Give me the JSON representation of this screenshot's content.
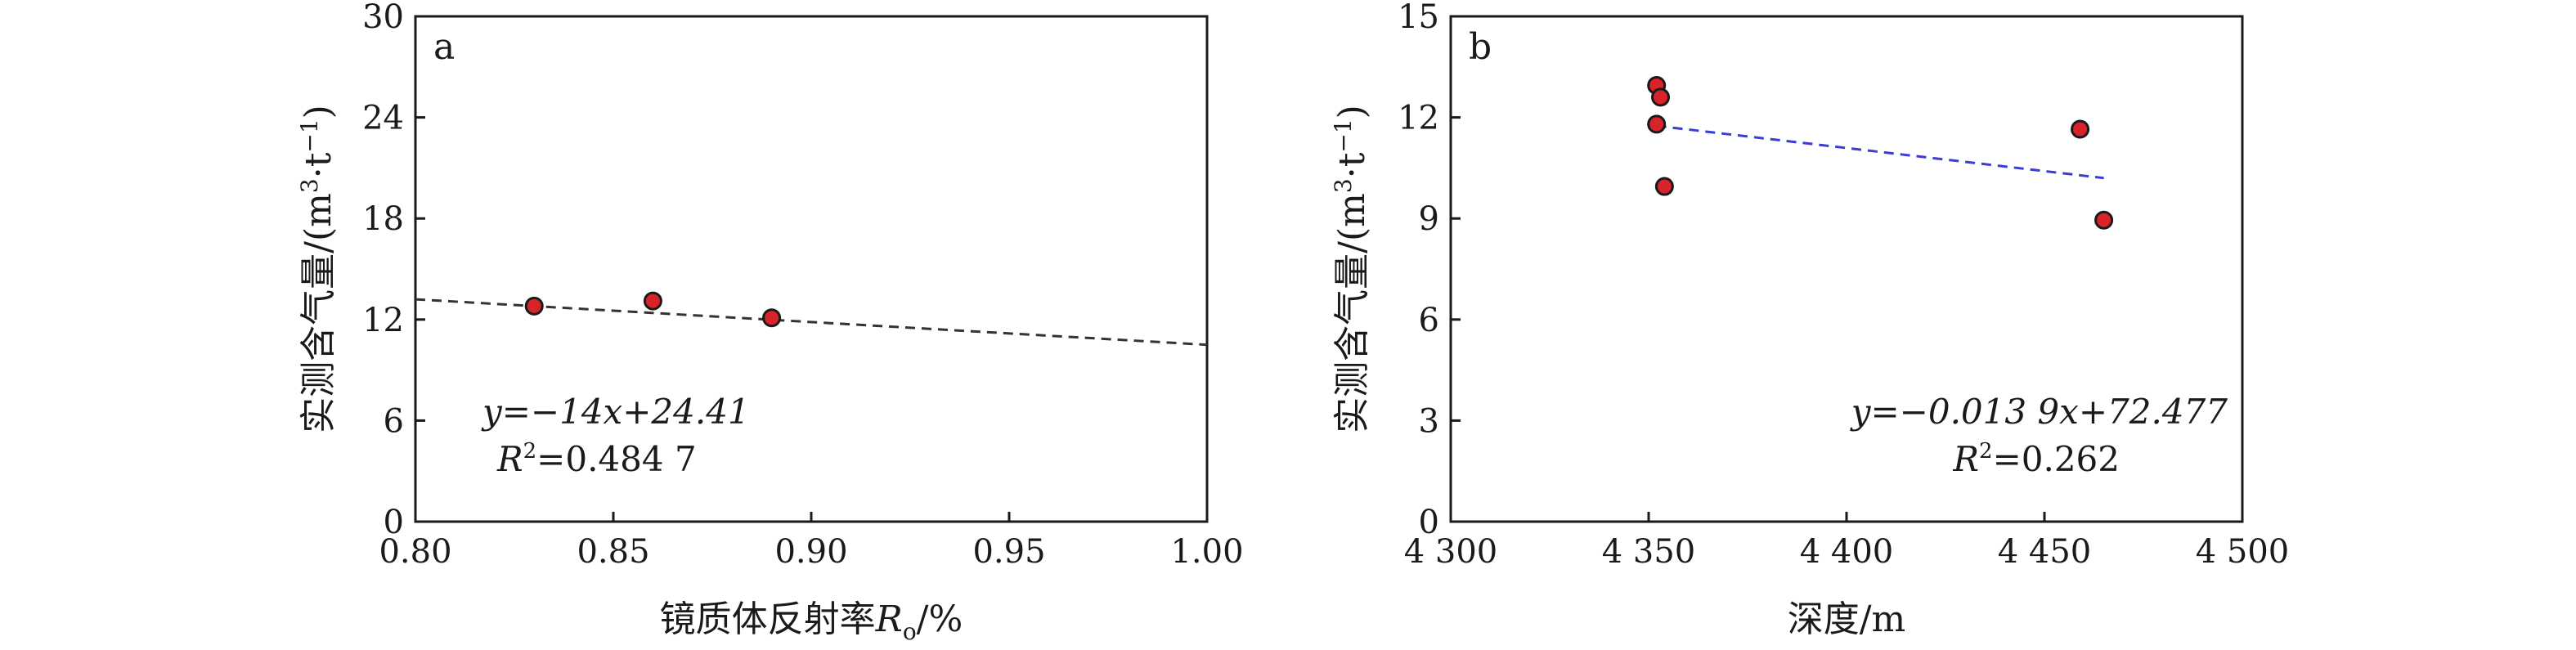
{
  "colors": {
    "point_fill": "#d8232a",
    "trend_a": "#333333",
    "trend_b": "#3b3bd6"
  },
  "chart_data": [
    {
      "type": "scatter",
      "panel_label": "a",
      "xlabel_main": "镜质体反射率",
      "xlabel_var": "R",
      "xlabel_sub": "o",
      "xlabel_unit": "/%",
      "ylabel_main": "实测含气量/(m",
      "ylabel_sup1": "3",
      "ylabel_mid": "·t",
      "ylabel_sup2": "−1",
      "ylabel_end": ")",
      "xlim": [
        0.8,
        1.0
      ],
      "ylim": [
        0,
        30
      ],
      "xticks": [
        "0.80",
        "0.85",
        "0.90",
        "0.95",
        "1.00"
      ],
      "yticks": [
        "0",
        "6",
        "12",
        "18",
        "24",
        "30"
      ],
      "points": [
        {
          "x": 0.83,
          "y": 12.8
        },
        {
          "x": 0.86,
          "y": 13.1
        },
        {
          "x": 0.89,
          "y": 12.1
        }
      ],
      "trend_x": [
        0.8,
        1.0
      ],
      "trend_y": [
        13.2,
        10.5
      ],
      "eq_line1": "y=−14x+24.41",
      "eq_line2_r": "R",
      "eq_line2_sup": "2",
      "eq_line2_rest": "=0.484 7"
    },
    {
      "type": "scatter",
      "panel_label": "b",
      "xlabel_main": "深度/m",
      "ylabel_main": "实测含气量/(m",
      "ylabel_sup1": "3",
      "ylabel_mid": "·t",
      "ylabel_sup2": "−1",
      "ylabel_end": ")",
      "xlim": [
        4300,
        4500
      ],
      "ylim": [
        0,
        15
      ],
      "xticks": [
        "4 300",
        "4 350",
        "4 400",
        "4 450",
        "4 500"
      ],
      "yticks": [
        "0",
        "3",
        "6",
        "9",
        "12",
        "15"
      ],
      "points": [
        {
          "x": 4352,
          "y": 12.95
        },
        {
          "x": 4353,
          "y": 12.6
        },
        {
          "x": 4352,
          "y": 11.8
        },
        {
          "x": 4354,
          "y": 9.95
        },
        {
          "x": 4459,
          "y": 11.65
        },
        {
          "x": 4465,
          "y": 8.95
        }
      ],
      "trend_x": [
        4352,
        4465
      ],
      "trend_y": [
        11.75,
        10.2
      ],
      "eq_line1": "y=−0.013 9x+72.477",
      "eq_line2_r": "R",
      "eq_line2_sup": "2",
      "eq_line2_rest": "=0.262"
    }
  ]
}
